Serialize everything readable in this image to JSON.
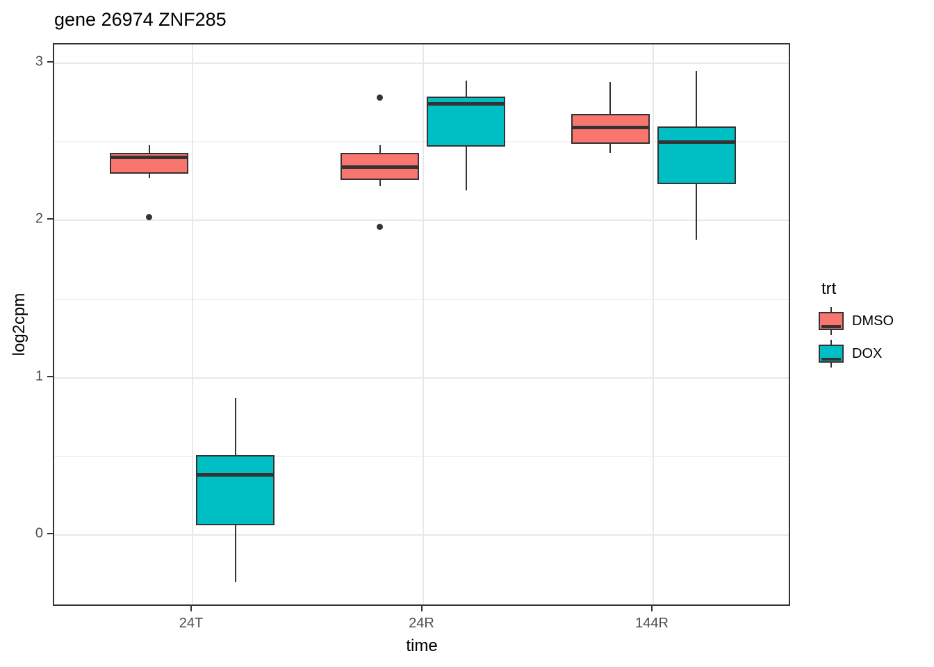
{
  "title": "gene 26974 ZNF285",
  "chart_data": {
    "type": "boxplot",
    "title": "gene 26974 ZNF285",
    "xlabel": "time",
    "ylabel": "log2cpm",
    "categories": [
      "24T",
      "24R",
      "144R"
    ],
    "ylim": [
      -0.46,
      3.12
    ],
    "yticks": [
      0,
      1,
      2,
      3
    ],
    "yminor": [
      0.5,
      1.5,
      2.5
    ],
    "grid": true,
    "legend_title": "trt",
    "legend_position": "right",
    "outline_color": "#333333",
    "grid_major_color": "#e8e8e8",
    "grid_minor_color": "#f2f2f2",
    "series": [
      {
        "name": "DMSO",
        "color": "#F8766D",
        "boxes": [
          {
            "category": "24T",
            "whisker_low": 2.27,
            "q1": 2.3,
            "median": 2.4,
            "q3": 2.43,
            "whisker_high": 2.48,
            "outliers": [
              2.02
            ]
          },
          {
            "category": "24R",
            "whisker_low": 2.22,
            "q1": 2.26,
            "median": 2.34,
            "q3": 2.43,
            "whisker_high": 2.48,
            "outliers": [
              2.78,
              1.96
            ]
          },
          {
            "category": "144R",
            "whisker_low": 2.43,
            "q1": 2.49,
            "median": 2.59,
            "q3": 2.68,
            "whisker_high": 2.88,
            "outliers": []
          }
        ]
      },
      {
        "name": "DOX",
        "color": "#00BFC4",
        "boxes": [
          {
            "category": "24T",
            "whisker_low": -0.3,
            "q1": 0.06,
            "median": 0.38,
            "q3": 0.51,
            "whisker_high": 0.87,
            "outliers": []
          },
          {
            "category": "24R",
            "whisker_low": 2.19,
            "q1": 2.47,
            "median": 2.74,
            "q3": 2.79,
            "whisker_high": 2.89,
            "outliers": []
          },
          {
            "category": "144R",
            "whisker_low": 1.88,
            "q1": 2.23,
            "median": 2.5,
            "q3": 2.6,
            "whisker_high": 2.95,
            "outliers": []
          }
        ]
      }
    ]
  },
  "legend": {
    "title": "trt",
    "items": [
      {
        "label": "DMSO",
        "color": "#F8766D"
      },
      {
        "label": "DOX",
        "color": "#00BFC4"
      }
    ]
  }
}
